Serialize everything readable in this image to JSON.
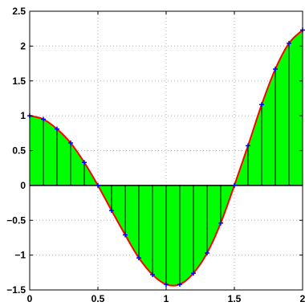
{
  "chart_data": {
    "type": "area",
    "title": "",
    "xlabel": "",
    "ylabel": "",
    "xlim": [
      0,
      2
    ],
    "ylim": [
      -1.5,
      2.5
    ],
    "x_ticks": [
      0,
      0.5,
      1,
      1.5,
      2
    ],
    "x_tick_labels": [
      "0",
      "0.5",
      "1",
      "1.5",
      "2"
    ],
    "y_ticks": [
      -1.5,
      -1,
      -0.5,
      0,
      0.5,
      1,
      1.5,
      2,
      2.5
    ],
    "y_tick_labels": [
      "−1.5",
      "−1",
      "−0.5",
      "0",
      "0.5",
      "1",
      "1.5",
      "2",
      "2.5"
    ],
    "grid": true,
    "baseline": 0,
    "fill_color": "#00ff00",
    "curve_color": "#ff0000",
    "marker_color": "#0000ff",
    "stem_color": "#000000",
    "marker": "plus",
    "series": [
      {
        "x": [
          0,
          0.1,
          0.2,
          0.3,
          0.4,
          0.5,
          0.6,
          0.7,
          0.8,
          0.9,
          1.0,
          1.1,
          1.2,
          1.3,
          1.4,
          1.5,
          1.6,
          1.7,
          1.8,
          1.9,
          2.0
        ],
        "values": [
          1.0,
          0.95,
          0.81,
          0.61,
          0.33,
          0.0,
          -0.36,
          -0.71,
          -1.04,
          -1.28,
          -1.42,
          -1.42,
          -1.26,
          -0.97,
          -0.54,
          0.0,
          0.57,
          1.16,
          1.67,
          2.04,
          2.23
        ]
      }
    ]
  }
}
